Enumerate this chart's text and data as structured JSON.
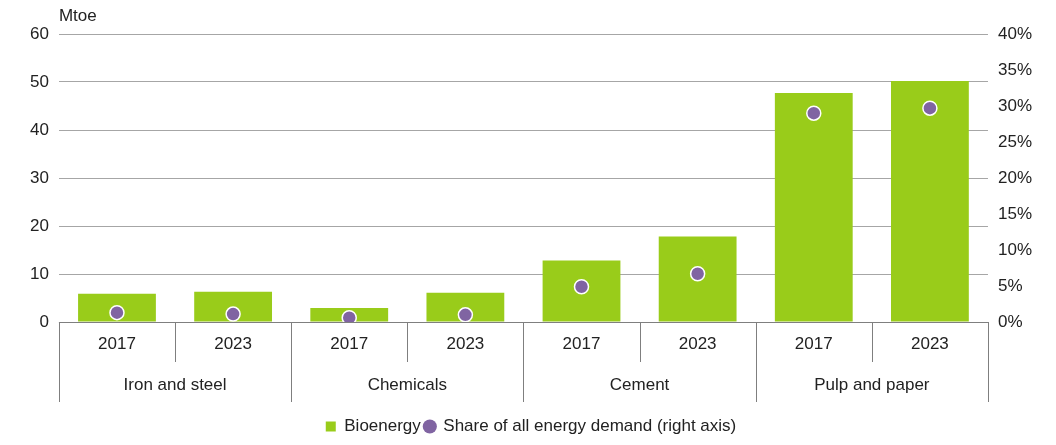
{
  "chart_data": {
    "type": "bar",
    "ylabel": "Mtoe",
    "categories": [
      "2017",
      "2023",
      "2017",
      "2023",
      "2017",
      "2023",
      "2017",
      "2023"
    ],
    "annotations": [
      "Iron and steel",
      "Chemicals",
      "Cement",
      "Pulp and paper"
    ],
    "series": [
      {
        "name": "Bioenergy",
        "color": "#99cc1a",
        "values": [
          5.9,
          6.3,
          2.9,
          6.1,
          12.8,
          17.8,
          47.7,
          50.2
        ]
      },
      {
        "name": "Share of all energy demand (right axis)",
        "type": "scatter",
        "axis": "y2",
        "color": "#8064a2",
        "values": [
          1.3,
          1.1,
          0.6,
          1.0,
          4.9,
          6.7,
          29.0,
          29.7
        ]
      }
    ],
    "ylim": [
      0,
      60
    ],
    "yticks": [
      0,
      10,
      20,
      30,
      40,
      50,
      60
    ],
    "y2lim": [
      0,
      40
    ],
    "y2ticks": [
      {
        "value": 0,
        "label": "0%"
      },
      {
        "value": 5,
        "label": "5%"
      },
      {
        "value": 10,
        "label": "10%"
      },
      {
        "value": 15,
        "label": "15%"
      },
      {
        "value": 20,
        "label": "20%"
      },
      {
        "value": 25,
        "label": "25%"
      },
      {
        "value": 30,
        "label": "30%"
      },
      {
        "value": 35,
        "label": "35%"
      },
      {
        "value": 40,
        "label": "40%"
      }
    ],
    "grid": "y",
    "legend": "bottom",
    "marker": "circle"
  }
}
